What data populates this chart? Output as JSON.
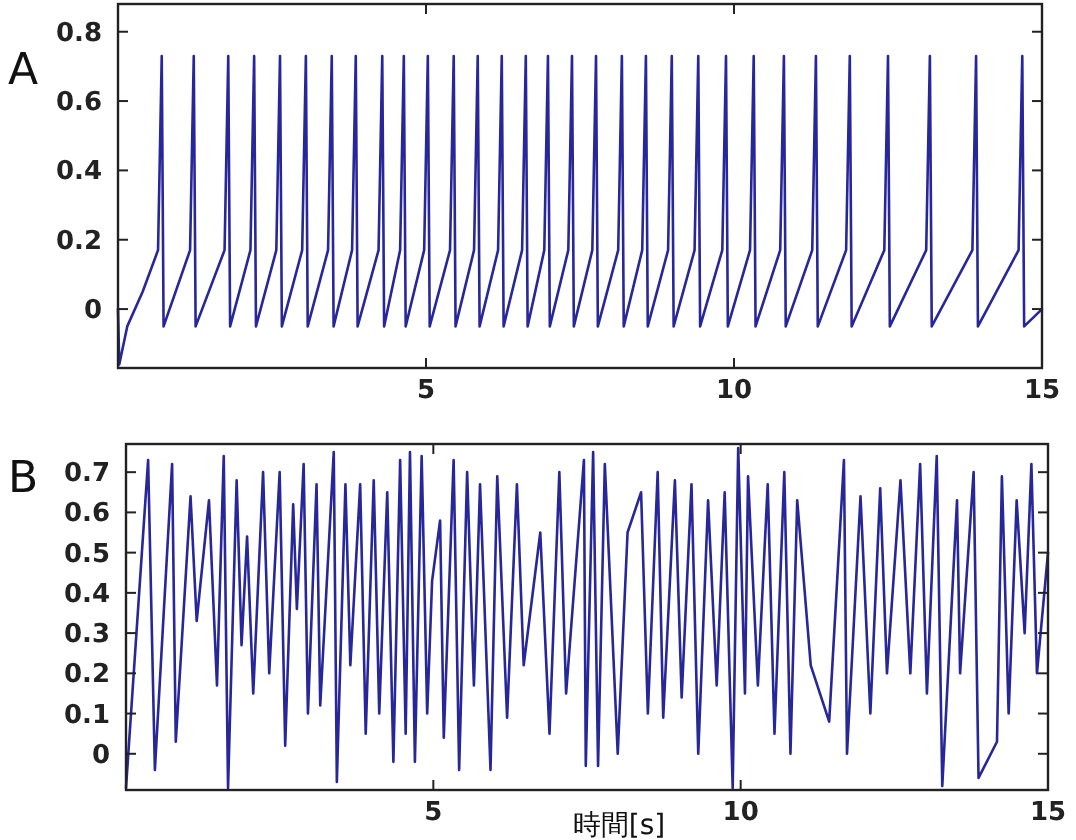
{
  "chart_data": [
    {
      "type": "line",
      "title": "A",
      "color": "#27279a",
      "xlim": [
        0,
        15
      ],
      "ylim": [
        -0.17,
        0.88
      ],
      "xticks": [
        5,
        10,
        15
      ],
      "yticks": [
        0,
        0.2,
        0.4,
        0.6,
        0.8
      ],
      "x": [
        0,
        0.02,
        0.15,
        0.4,
        0.65,
        0.71,
        0.74,
        1.17,
        1.23,
        1.26,
        1.73,
        1.79,
        1.82,
        2.15,
        2.21,
        2.24,
        2.57,
        2.63,
        2.66,
        2.99,
        3.05,
        3.08,
        3.41,
        3.47,
        3.5,
        3.8,
        3.86,
        3.89,
        4.23,
        4.29,
        4.32,
        4.58,
        4.64,
        4.67,
        4.97,
        5.03,
        5.06,
        5.39,
        5.45,
        5.48,
        5.78,
        5.84,
        5.87,
        6.17,
        6.23,
        6.26,
        6.56,
        6.62,
        6.65,
        6.92,
        6.98,
        7.01,
        7.31,
        7.37,
        7.4,
        7.7,
        7.76,
        7.79,
        8.12,
        8.18,
        8.21,
        8.51,
        8.57,
        8.6,
        8.93,
        8.99,
        9.02,
        9.36,
        9.42,
        9.45,
        9.81,
        9.87,
        9.9,
        10.26,
        10.32,
        10.35,
        10.75,
        10.81,
        10.84,
        11.27,
        11.33,
        11.36,
        11.82,
        11.88,
        11.91,
        12.44,
        12.5,
        12.53,
        13.12,
        13.18,
        13.21,
        13.87,
        13.93,
        13.96,
        14.62,
        14.68,
        14.71,
        15
      ],
      "values": [
        0,
        -0.16,
        -0.05,
        0.05,
        0.17,
        0.73,
        -0.05,
        0.17,
        0.73,
        -0.05,
        0.17,
        0.73,
        -0.05,
        0.17,
        0.73,
        -0.05,
        0.17,
        0.73,
        -0.05,
        0.17,
        0.73,
        -0.05,
        0.17,
        0.73,
        -0.05,
        0.17,
        0.73,
        -0.05,
        0.17,
        0.73,
        -0.05,
        0.17,
        0.73,
        -0.05,
        0.17,
        0.73,
        -0.05,
        0.17,
        0.73,
        -0.05,
        0.17,
        0.73,
        -0.05,
        0.17,
        0.73,
        -0.05,
        0.17,
        0.73,
        -0.05,
        0.17,
        0.73,
        -0.05,
        0.17,
        0.73,
        -0.05,
        0.17,
        0.73,
        -0.05,
        0.17,
        0.73,
        -0.05,
        0.17,
        0.73,
        -0.05,
        0.17,
        0.73,
        -0.05,
        0.17,
        0.73,
        -0.05,
        0.17,
        0.73,
        -0.05,
        0.17,
        0.73,
        -0.05,
        0.17,
        0.73,
        -0.05,
        0.17,
        0.73,
        -0.05,
        0.17,
        0.73,
        -0.05,
        0.17,
        0.73,
        -0.05,
        0.17,
        0.73,
        -0.05,
        0.17,
        0.73,
        -0.05,
        0.17,
        0.73,
        -0.05,
        0.0
      ]
    },
    {
      "type": "line",
      "title": "B",
      "xlabel": "時間[s]",
      "color": "#27279a",
      "xlim": [
        0,
        15
      ],
      "ylim": [
        -0.09,
        0.77
      ],
      "xticks": [
        5,
        10,
        15
      ],
      "yticks": [
        0,
        0.1,
        0.2,
        0.3,
        0.4,
        0.5,
        0.6,
        0.7
      ],
      "x": [
        0,
        0.36,
        0.47,
        0.75,
        0.81,
        1.05,
        1.15,
        1.35,
        1.48,
        1.59,
        1.66,
        1.8,
        1.88,
        1.97,
        2.07,
        2.23,
        2.33,
        2.5,
        2.59,
        2.72,
        2.78,
        2.89,
        2.96,
        3.1,
        3.16,
        3.38,
        3.43,
        3.57,
        3.65,
        3.81,
        3.9,
        4.03,
        4.12,
        4.25,
        4.35,
        4.46,
        4.55,
        4.62,
        4.7,
        4.81,
        4.9,
        4.98,
        5.11,
        5.17,
        5.33,
        5.42,
        5.55,
        5.66,
        5.76,
        5.93,
        6.04,
        6.2,
        6.36,
        6.47,
        6.74,
        6.89,
        7.05,
        7.16,
        7.45,
        7.48,
        7.6,
        7.68,
        7.79,
        8.0,
        8.16,
        8.38,
        8.49,
        8.65,
        8.74,
        8.93,
        9.04,
        9.2,
        9.31,
        9.47,
        9.61,
        9.74,
        9.87,
        9.96,
        10.07,
        10.12,
        10.28,
        10.44,
        10.55,
        10.71,
        10.81,
        10.92,
        11.14,
        11.44,
        11.68,
        11.73,
        11.95,
        12.11,
        12.27,
        12.38,
        12.6,
        12.76,
        12.92,
        13.03,
        13.19,
        13.28,
        13.52,
        13.57,
        13.79,
        13.87,
        14.17,
        14.25,
        14.36,
        14.49,
        14.62,
        14.73,
        14.82,
        15
      ],
      "values": [
        -0.085,
        0.73,
        -0.04,
        0.72,
        0.03,
        0.64,
        0.33,
        0.63,
        0.17,
        0.74,
        -0.085,
        0.68,
        0.27,
        0.54,
        0.15,
        0.7,
        0.2,
        0.7,
        0.02,
        0.62,
        0.36,
        0.72,
        0.1,
        0.67,
        0.12,
        0.75,
        -0.07,
        0.67,
        0.22,
        0.67,
        0.05,
        0.68,
        0.1,
        0.65,
        -0.02,
        0.73,
        0.05,
        0.75,
        -0.02,
        0.74,
        0.1,
        0.43,
        0.58,
        0.04,
        0.73,
        -0.04,
        0.7,
        0.17,
        0.67,
        -0.04,
        0.69,
        0.09,
        0.67,
        0.22,
        0.55,
        0.05,
        0.7,
        0.15,
        0.73,
        -0.03,
        0.75,
        -0.03,
        0.72,
        0.0,
        0.55,
        0.65,
        0.1,
        0.7,
        0.09,
        0.68,
        0.14,
        0.67,
        0.0,
        0.63,
        0.17,
        0.65,
        -0.085,
        0.76,
        0.15,
        0.69,
        0.17,
        0.67,
        0.05,
        0.7,
        0.0,
        0.63,
        0.22,
        0.08,
        0.73,
        0.0,
        0.64,
        0.1,
        0.66,
        0.2,
        0.68,
        0.2,
        0.72,
        0.15,
        0.74,
        -0.08,
        0.63,
        0.2,
        0.7,
        -0.06,
        0.03,
        0.69,
        0.1,
        0.63,
        0.3,
        0.72,
        0.2,
        0.5
      ]
    }
  ]
}
